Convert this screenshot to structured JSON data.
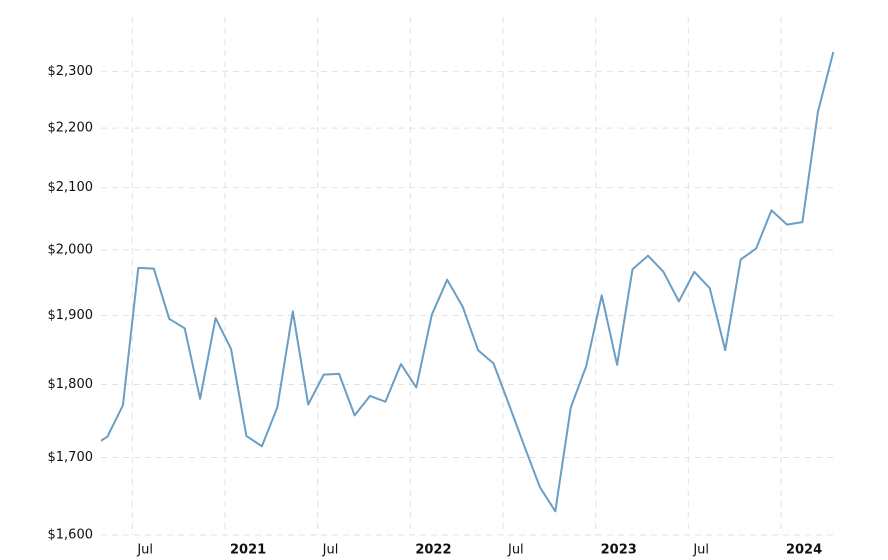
{
  "chart_data": {
    "type": "line",
    "x": [
      "2020-04",
      "2020-05",
      "2020-06",
      "2020-07",
      "2020-08",
      "2020-09",
      "2020-10",
      "2020-11",
      "2020-12",
      "2021-01",
      "2021-02",
      "2021-03",
      "2021-04",
      "2021-05",
      "2021-06",
      "2021-07",
      "2021-08",
      "2021-09",
      "2021-10",
      "2021-11",
      "2021-12",
      "2022-01",
      "2022-02",
      "2022-03",
      "2022-04",
      "2022-05",
      "2022-06",
      "2022-07",
      "2022-08",
      "2022-09",
      "2022-10",
      "2022-11",
      "2022-12",
      "2023-01",
      "2023-02",
      "2023-03",
      "2023-04",
      "2023-05",
      "2023-06",
      "2023-07",
      "2023-08",
      "2023-09",
      "2023-10",
      "2023-11",
      "2023-12",
      "2024-01",
      "2024-02",
      "2024-03",
      "2024-04"
    ],
    "values": [
      1715,
      1728,
      1771,
      1972,
      1971,
      1895,
      1881,
      1780,
      1896,
      1851,
      1729,
      1715,
      1768,
      1906,
      1772,
      1814,
      1815,
      1757,
      1784,
      1776,
      1829,
      1796,
      1901,
      1954,
      1913,
      1849,
      1830,
      1772,
      1715,
      1661,
      1630,
      1768,
      1826,
      1930,
      1828,
      1970,
      1991,
      1966,
      1921,
      1966,
      1941,
      1849,
      1985,
      2002,
      2063,
      2040,
      2044,
      2228,
      2335
    ],
    "color": "#6a9ec5",
    "log_y": true,
    "grid": true,
    "ylim": [
      1600,
      2400
    ],
    "yticks": [
      {
        "value": 1600,
        "label": "$1,600"
      },
      {
        "value": 1700,
        "label": "$1,700"
      },
      {
        "value": 1800,
        "label": "$1,800"
      },
      {
        "value": 1900,
        "label": "$1,900"
      },
      {
        "value": 2000,
        "label": "$2,000"
      },
      {
        "value": 2100,
        "label": "$2,100"
      },
      {
        "value": 2200,
        "label": "$2,200"
      },
      {
        "value": 2300,
        "label": "$2,300"
      }
    ],
    "xticks": [
      {
        "value": "2020-07",
        "label": "Jul"
      },
      {
        "value": "2021-01",
        "label": "2021"
      },
      {
        "value": "2021-07",
        "label": "Jul"
      },
      {
        "value": "2022-01",
        "label": "2022"
      },
      {
        "value": "2022-07",
        "label": "Jul"
      },
      {
        "value": "2023-01",
        "label": "2023"
      },
      {
        "value": "2023-07",
        "label": "Jul"
      },
      {
        "value": "2024-01",
        "label": "2024"
      }
    ]
  }
}
